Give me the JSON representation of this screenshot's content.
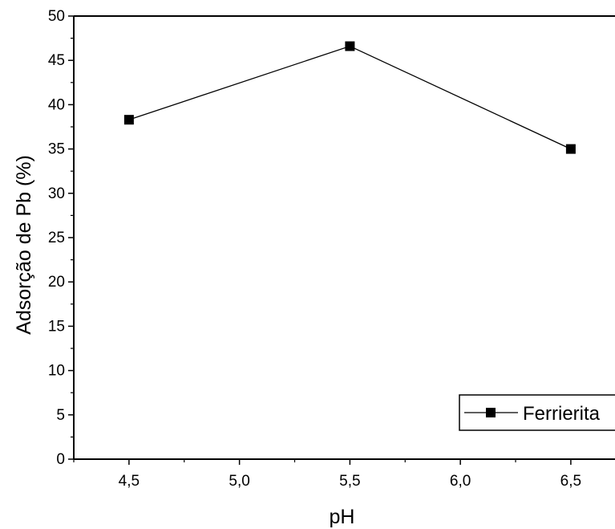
{
  "chart_data": {
    "type": "line",
    "title": "",
    "xlabel": "pH",
    "ylabel": "Adsorção de Pb (%)",
    "x": [
      4.5,
      5.5,
      6.5
    ],
    "series": [
      {
        "name": "Ferrierita",
        "values": [
          38.3,
          46.6,
          35.0
        ]
      }
    ],
    "xlim": [
      4.25,
      6.7
    ],
    "ylim": [
      0,
      50
    ],
    "x_ticks": [
      "4,5",
      "5,0",
      "5,5",
      "6,0",
      "6,5"
    ],
    "y_ticks": [
      "0",
      "5",
      "10",
      "15",
      "20",
      "25",
      "30",
      "35",
      "40",
      "45",
      "50"
    ],
    "grid": false,
    "legend_position": "bottom-right",
    "marker": "square",
    "color": "#000000"
  }
}
